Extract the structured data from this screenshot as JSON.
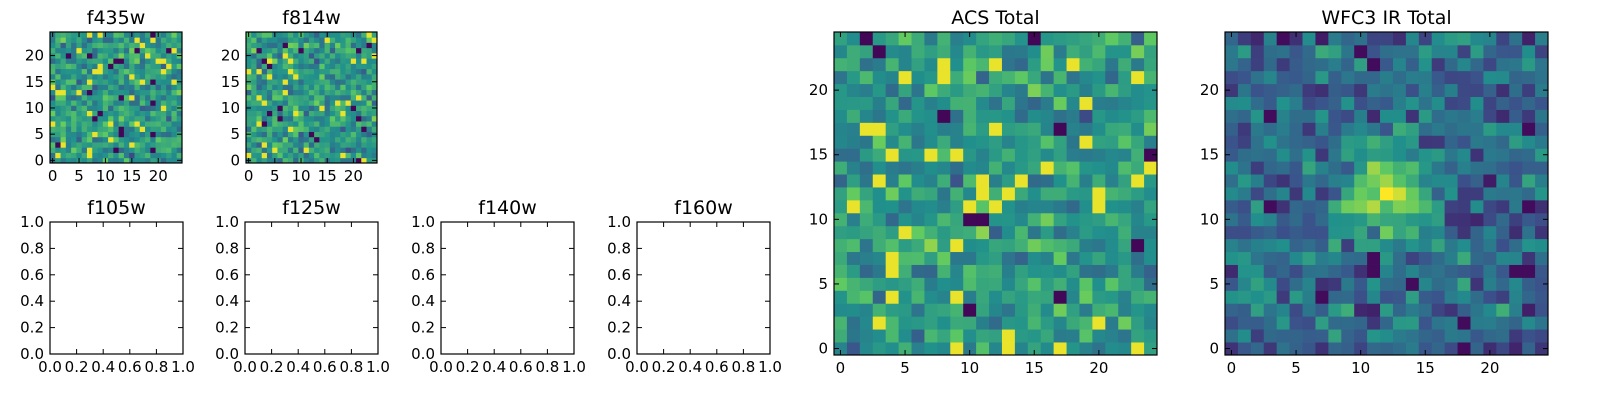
{
  "figure": {
    "colormap": "viridis",
    "colormap_stops": [
      "#440154",
      "#3b528b",
      "#21918c",
      "#5ec962",
      "#fde725"
    ]
  },
  "chart_data": [
    {
      "type": "heatmap",
      "title": "f435w",
      "grid_size": [
        25,
        25
      ],
      "origin": "lower",
      "xlim": [
        -0.5,
        24.5
      ],
      "ylim": [
        -0.5,
        24.5
      ],
      "xticks": [
        0,
        5,
        10,
        15,
        20
      ],
      "xtick_labels": [
        "0",
        "5",
        "10",
        "15",
        "20"
      ],
      "yticks": [
        0,
        5,
        10,
        15,
        20
      ],
      "ytick_labels": [
        "0",
        "5",
        "10",
        "15",
        "20"
      ],
      "style": "noise",
      "seed": 11
    },
    {
      "type": "heatmap",
      "title": "f814w",
      "grid_size": [
        25,
        25
      ],
      "origin": "lower",
      "xlim": [
        -0.5,
        24.5
      ],
      "ylim": [
        -0.5,
        24.5
      ],
      "xticks": [
        0,
        5,
        10,
        15,
        20
      ],
      "xtick_labels": [
        "0",
        "5",
        "10",
        "15",
        "20"
      ],
      "yticks": [
        0,
        5,
        10,
        15,
        20
      ],
      "ytick_labels": [
        "0",
        "5",
        "10",
        "15",
        "20"
      ],
      "style": "noise",
      "seed": 23
    },
    {
      "type": "empty",
      "title": "f105w",
      "xlim": [
        0,
        1
      ],
      "ylim": [
        0,
        1
      ],
      "xticks": [
        0,
        0.2,
        0.4,
        0.6,
        0.8,
        1.0
      ],
      "xtick_labels": [
        "0.0",
        "0.2",
        "0.4",
        "0.6",
        "0.8",
        "1.0"
      ],
      "yticks": [
        0,
        0.2,
        0.4,
        0.6,
        0.8,
        1.0
      ],
      "ytick_labels": [
        "0.0",
        "0.2",
        "0.4",
        "0.6",
        "0.8",
        "1.0"
      ]
    },
    {
      "type": "empty",
      "title": "f125w",
      "xlim": [
        0,
        1
      ],
      "ylim": [
        0,
        1
      ],
      "xticks": [
        0,
        0.2,
        0.4,
        0.6,
        0.8,
        1.0
      ],
      "xtick_labels": [
        "0.0",
        "0.2",
        "0.4",
        "0.6",
        "0.8",
        "1.0"
      ],
      "yticks": [
        0,
        0.2,
        0.4,
        0.6,
        0.8,
        1.0
      ],
      "ytick_labels": [
        "0.0",
        "0.2",
        "0.4",
        "0.6",
        "0.8",
        "1.0"
      ]
    },
    {
      "type": "empty",
      "title": "f140w",
      "xlim": [
        0,
        1
      ],
      "ylim": [
        0,
        1
      ],
      "xticks": [
        0,
        0.2,
        0.4,
        0.6,
        0.8,
        1.0
      ],
      "xtick_labels": [
        "0.0",
        "0.2",
        "0.4",
        "0.6",
        "0.8",
        "1.0"
      ],
      "yticks": [
        0,
        0.2,
        0.4,
        0.6,
        0.8,
        1.0
      ],
      "ytick_labels": [
        "0.0",
        "0.2",
        "0.4",
        "0.6",
        "0.8",
        "1.0"
      ]
    },
    {
      "type": "empty",
      "title": "f160w",
      "xlim": [
        0,
        1
      ],
      "ylim": [
        0,
        1
      ],
      "xticks": [
        0,
        0.2,
        0.4,
        0.6,
        0.8,
        1.0
      ],
      "xtick_labels": [
        "0.0",
        "0.2",
        "0.4",
        "0.6",
        "0.8",
        "1.0"
      ],
      "yticks": [
        0,
        0.2,
        0.4,
        0.6,
        0.8,
        1.0
      ],
      "ytick_labels": [
        "0.0",
        "0.2",
        "0.4",
        "0.6",
        "0.8",
        "1.0"
      ]
    },
    {
      "type": "heatmap",
      "title": "ACS Total",
      "grid_size": [
        25,
        25
      ],
      "origin": "lower",
      "xlim": [
        -0.5,
        24.5
      ],
      "ylim": [
        -0.5,
        24.5
      ],
      "xticks": [
        0,
        5,
        10,
        15,
        20
      ],
      "xtick_labels": [
        "0",
        "5",
        "10",
        "15",
        "20"
      ],
      "yticks": [
        0,
        5,
        10,
        15,
        20
      ],
      "ytick_labels": [
        "0",
        "5",
        "10",
        "15",
        "20"
      ],
      "style": "noise",
      "seed": 37
    },
    {
      "type": "heatmap",
      "title": "WFC3 IR Total",
      "grid_size": [
        25,
        25
      ],
      "origin": "lower",
      "xlim": [
        -0.5,
        24.5
      ],
      "ylim": [
        -0.5,
        24.5
      ],
      "xticks": [
        0,
        5,
        10,
        15,
        20
      ],
      "xtick_labels": [
        "0",
        "5",
        "10",
        "15",
        "20"
      ],
      "yticks": [
        0,
        5,
        10,
        15,
        20
      ],
      "ytick_labels": [
        "0",
        "5",
        "10",
        "15",
        "20"
      ],
      "style": "smooth-blob",
      "blob_center": [
        12,
        12
      ],
      "seed": 53
    }
  ]
}
